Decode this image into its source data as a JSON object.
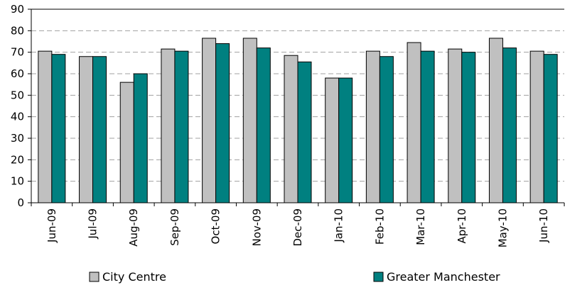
{
  "chart_data": {
    "type": "bar",
    "categories": [
      "Jun-09",
      "Jul-09",
      "Aug-09",
      "Sep-09",
      "Oct-09",
      "Nov-09",
      "Dec-09",
      "Jan-10",
      "Feb-10",
      "Mar-10",
      "Apr-10",
      "May-10",
      "Jun-10"
    ],
    "series": [
      {
        "name": "City Centre",
        "color": "#c0c0c0",
        "values": [
          70.5,
          68,
          56,
          71.5,
          76.5,
          76.5,
          68.5,
          58,
          70.5,
          74.5,
          71.5,
          76.5,
          70.5
        ]
      },
      {
        "name": "Greater Manchester",
        "color": "#008080",
        "values": [
          69,
          68,
          60,
          70.5,
          74,
          72,
          65.5,
          58,
          68,
          70.5,
          70,
          72,
          69
        ]
      }
    ],
    "ylim": [
      0,
      90
    ],
    "yticks": [
      0,
      10,
      20,
      30,
      40,
      50,
      60,
      70,
      80,
      90
    ],
    "grid": true,
    "legend_position": "bottom"
  }
}
